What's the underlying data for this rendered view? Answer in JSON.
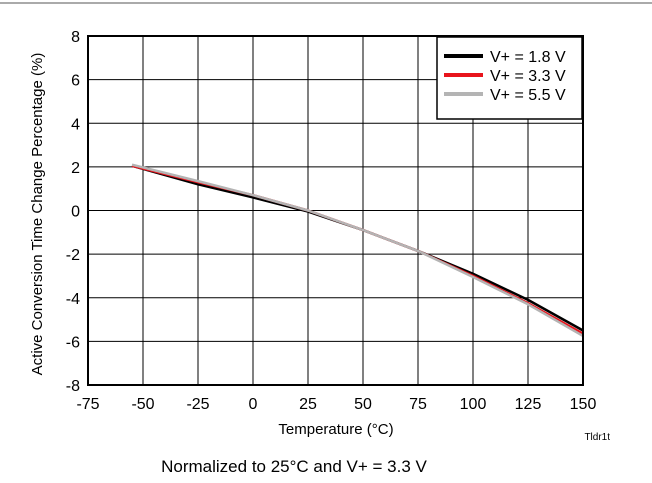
{
  "chart_data": {
    "type": "line",
    "xlabel": "Temperature (°C)",
    "ylabel": "Active Conversion Time Change Percentage (%)",
    "xlim": [
      -75,
      150
    ],
    "ylim": [
      -8,
      8
    ],
    "x_ticks": [
      -75,
      -50,
      -25,
      0,
      25,
      50,
      75,
      100,
      125,
      150
    ],
    "y_ticks": [
      8,
      6,
      4,
      2,
      0,
      -2,
      -4,
      -6,
      -8
    ],
    "grid": true,
    "legend_position": "top-right",
    "series": [
      {
        "name": "V+ = 1.8 V",
        "color": "#000000",
        "x": [
          -55,
          -25,
          0,
          25,
          50,
          75,
          100,
          125,
          150
        ],
        "y": [
          2.05,
          1.2,
          0.6,
          -0.05,
          -0.9,
          -1.85,
          -2.9,
          -4.1,
          -5.5
        ]
      },
      {
        "name": "V+ = 3.3 V",
        "color": "#e8141c",
        "x": [
          -55,
          -25,
          0,
          25,
          50,
          75,
          100,
          125,
          150
        ],
        "y": [
          2.05,
          1.3,
          0.7,
          0.0,
          -0.9,
          -1.85,
          -3.0,
          -4.25,
          -5.65
        ]
      },
      {
        "name": "V+ = 5.5 V",
        "color": "#b4b4b4",
        "x": [
          -55,
          -25,
          0,
          25,
          50,
          75,
          100,
          125,
          150
        ],
        "y": [
          2.1,
          1.35,
          0.7,
          0.0,
          -0.9,
          -1.85,
          -3.05,
          -4.3,
          -5.75
        ]
      }
    ],
    "figure_id": "Tldr1t",
    "caption": "Normalized to 25°C and V+ = 3.3 V"
  }
}
